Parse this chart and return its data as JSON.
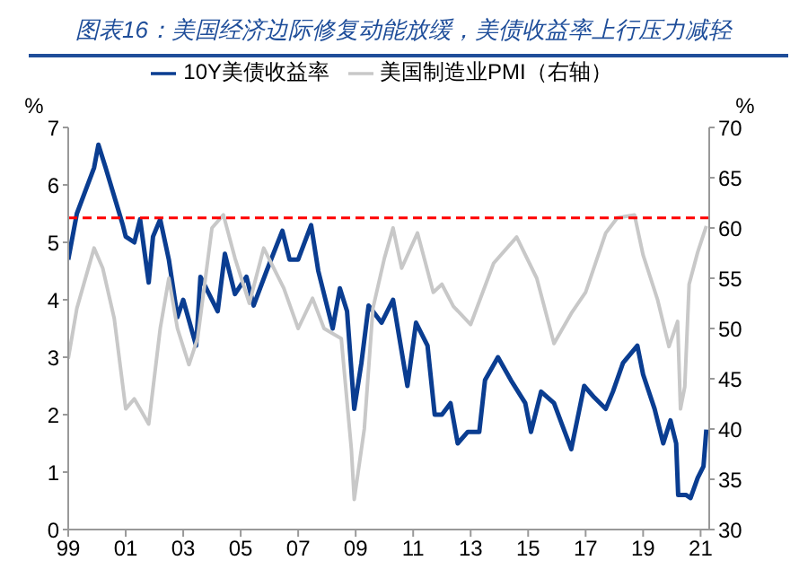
{
  "chart_data": {
    "type": "line",
    "title": "图表16：美国经济边际修复动能放缓，美债收益率上行压力减轻",
    "ylabel": "%",
    "y2label": "%",
    "series": [
      {
        "name": "10Y美债收益率",
        "color": "#0a3d91",
        "x": [
          1999.0,
          1999.3,
          1999.6,
          1999.9,
          2000.05,
          2000.3,
          2000.6,
          2000.9,
          2001.0,
          2001.3,
          2001.5,
          2001.8,
          2001.95,
          2002.2,
          2002.5,
          2002.8,
          2003.0,
          2003.45,
          2003.6,
          2004.2,
          2004.45,
          2004.8,
          2005.2,
          2005.45,
          2005.9,
          2006.45,
          2006.7,
          2007.0,
          2007.45,
          2007.7,
          2008.2,
          2008.45,
          2008.7,
          2008.95,
          2009.2,
          2009.45,
          2009.9,
          2010.3,
          2010.8,
          2011.1,
          2011.5,
          2011.75,
          2012.0,
          2012.3,
          2012.55,
          2012.9,
          2013.3,
          2013.5,
          2013.95,
          2014.4,
          2014.9,
          2015.1,
          2015.45,
          2015.9,
          2016.2,
          2016.5,
          2016.95,
          2017.3,
          2017.7,
          2017.95,
          2018.3,
          2018.8,
          2019.0,
          2019.4,
          2019.7,
          2019.95,
          2020.15,
          2020.22,
          2020.5,
          2020.65,
          2020.9,
          2021.1,
          2021.2
        ],
        "values": [
          4.7,
          5.5,
          5.9,
          6.3,
          6.7,
          6.3,
          5.8,
          5.3,
          5.1,
          5.0,
          5.4,
          4.3,
          5.1,
          5.4,
          4.7,
          3.7,
          4.0,
          3.2,
          4.4,
          3.8,
          4.8,
          4.1,
          4.4,
          3.9,
          4.5,
          5.2,
          4.7,
          4.7,
          5.3,
          4.5,
          3.5,
          4.2,
          3.8,
          2.1,
          2.9,
          3.9,
          3.6,
          4.0,
          2.5,
          3.6,
          3.2,
          2.0,
          2.0,
          2.2,
          1.5,
          1.7,
          1.7,
          2.6,
          3.0,
          2.6,
          2.2,
          1.7,
          2.4,
          2.2,
          1.8,
          1.4,
          2.5,
          2.3,
          2.1,
          2.4,
          2.9,
          3.2,
          2.7,
          2.1,
          1.5,
          1.9,
          1.5,
          0.6,
          0.6,
          0.55,
          0.9,
          1.1,
          1.74
        ]
      },
      {
        "name": "美国制造业PMI（右轴）",
        "color": "#c8c8c8",
        "axis": "y2",
        "x": [
          1999.0,
          1999.3,
          1999.9,
          2000.2,
          2000.6,
          2001.0,
          2001.3,
          2001.5,
          2001.8,
          2002.2,
          2002.5,
          2002.8,
          2003.2,
          2003.5,
          2004.0,
          2004.4,
          2004.8,
          2005.3,
          2005.8,
          2006.5,
          2007.0,
          2007.5,
          2007.9,
          2008.5,
          2008.85,
          2008.95,
          2009.3,
          2009.6,
          2010.0,
          2010.3,
          2010.6,
          2011.15,
          2011.7,
          2012.0,
          2012.4,
          2013.0,
          2013.8,
          2014.6,
          2015.3,
          2015.9,
          2016.5,
          2017.0,
          2017.7,
          2018.1,
          2018.7,
          2019.0,
          2019.5,
          2019.9,
          2020.2,
          2020.3,
          2020.45,
          2020.6,
          2020.9,
          2021.2
        ],
        "values": [
          47,
          52,
          58,
          56,
          51,
          42,
          43,
          42,
          40.5,
          50,
          55,
          50,
          46.4,
          49,
          60,
          61.3,
          57,
          52.5,
          58,
          54,
          50,
          53,
          50,
          49,
          38,
          33,
          40,
          52,
          57,
          60,
          56,
          59.5,
          53.6,
          54.4,
          52.2,
          50.4,
          56.5,
          59.1,
          55,
          48.5,
          51.5,
          53.6,
          59.5,
          61,
          61.3,
          57.3,
          52.9,
          48.2,
          50.7,
          42,
          44.2,
          54.4,
          57.6,
          60.2
        ]
      }
    ],
    "xlim": [
      1999,
      2021.3
    ],
    "xticks": [
      {
        "value": 1999,
        "label": "99"
      },
      {
        "value": 2001,
        "label": "01"
      },
      {
        "value": 2003,
        "label": "03"
      },
      {
        "value": 2005,
        "label": "05"
      },
      {
        "value": 2007,
        "label": "07"
      },
      {
        "value": 2009,
        "label": "09"
      },
      {
        "value": 2011,
        "label": "11"
      },
      {
        "value": 2013,
        "label": "13"
      },
      {
        "value": 2015,
        "label": "15"
      },
      {
        "value": 2017,
        "label": "17"
      },
      {
        "value": 2019,
        "label": "19"
      },
      {
        "value": 2021,
        "label": "21"
      }
    ],
    "ylim": [
      0,
      7
    ],
    "yticks": [
      0,
      1,
      2,
      3,
      4,
      5,
      6,
      7
    ],
    "y2lim": [
      30,
      70
    ],
    "y2ticks": [
      30,
      35,
      40,
      45,
      50,
      55,
      60,
      65,
      70
    ],
    "ref_lines": [
      {
        "axis": "y2",
        "value": 61,
        "color": "#ff0000",
        "line_style": "dashed"
      }
    ],
    "legend": "top",
    "grid": false,
    "marker": "none",
    "line_style": "solid"
  }
}
